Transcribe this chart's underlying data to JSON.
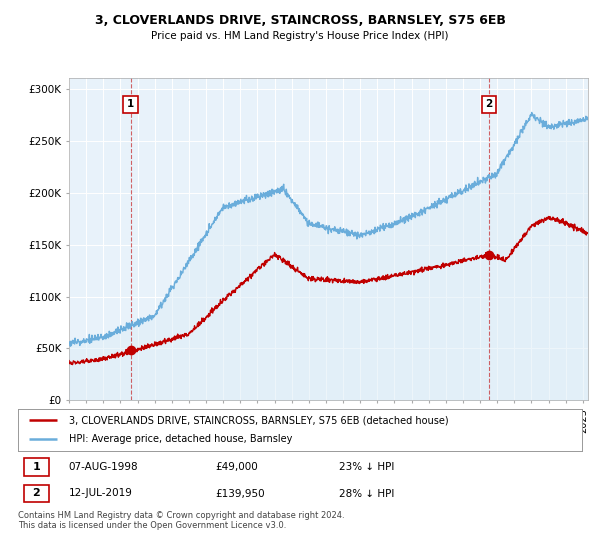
{
  "title": "3, CLOVERLANDS DRIVE, STAINCROSS, BARNSLEY, S75 6EB",
  "subtitle": "Price paid vs. HM Land Registry's House Price Index (HPI)",
  "ylabel_ticks": [
    "£0",
    "£50K",
    "£100K",
    "£150K",
    "£200K",
    "£250K",
    "£300K"
  ],
  "ytick_vals": [
    0,
    50000,
    100000,
    150000,
    200000,
    250000,
    300000
  ],
  "ylim": [
    0,
    310000
  ],
  "xlim_start": 1995.0,
  "xlim_end": 2025.3,
  "hpi_color": "#6aaddb",
  "hpi_fill_color": "#ddeef8",
  "price_color": "#c00000",
  "sale1_x": 1998.6,
  "sale1_y": 49000,
  "sale2_x": 2019.53,
  "sale2_y": 139950,
  "legend_entry1": "3, CLOVERLANDS DRIVE, STAINCROSS, BARNSLEY, S75 6EB (detached house)",
  "legend_entry2": "HPI: Average price, detached house, Barnsley",
  "footer": "Contains HM Land Registry data © Crown copyright and database right 2024.\nThis data is licensed under the Open Government Licence v3.0.",
  "background_color": "#ffffff",
  "plot_bg_color": "#e8f2fa",
  "grid_color": "#ffffff"
}
